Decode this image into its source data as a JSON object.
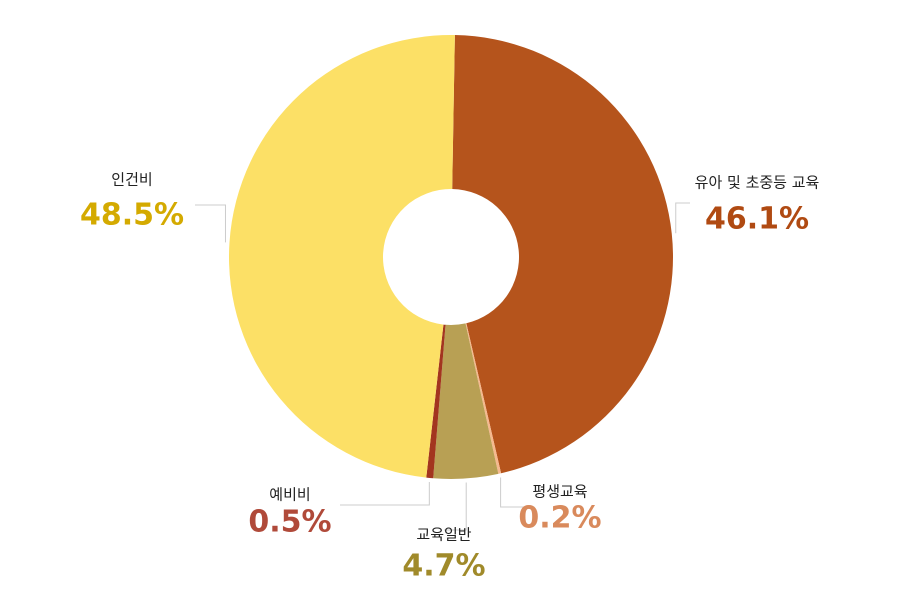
{
  "chart_data": {
    "type": "pie",
    "categories": [
      "유아 및 초중등 교육",
      "평생교육",
      "교육일반",
      "예비비",
      "인건비"
    ],
    "values": [
      46.1,
      0.2,
      4.7,
      0.5,
      48.5
    ],
    "value_labels": [
      "46.1%",
      "0.2%",
      "4.7%",
      "0.5%",
      "48.5%"
    ],
    "colors": [
      "#b5541c",
      "#f6b98e",
      "#b8a054",
      "#a3351f",
      "#fce066"
    ]
  }
}
